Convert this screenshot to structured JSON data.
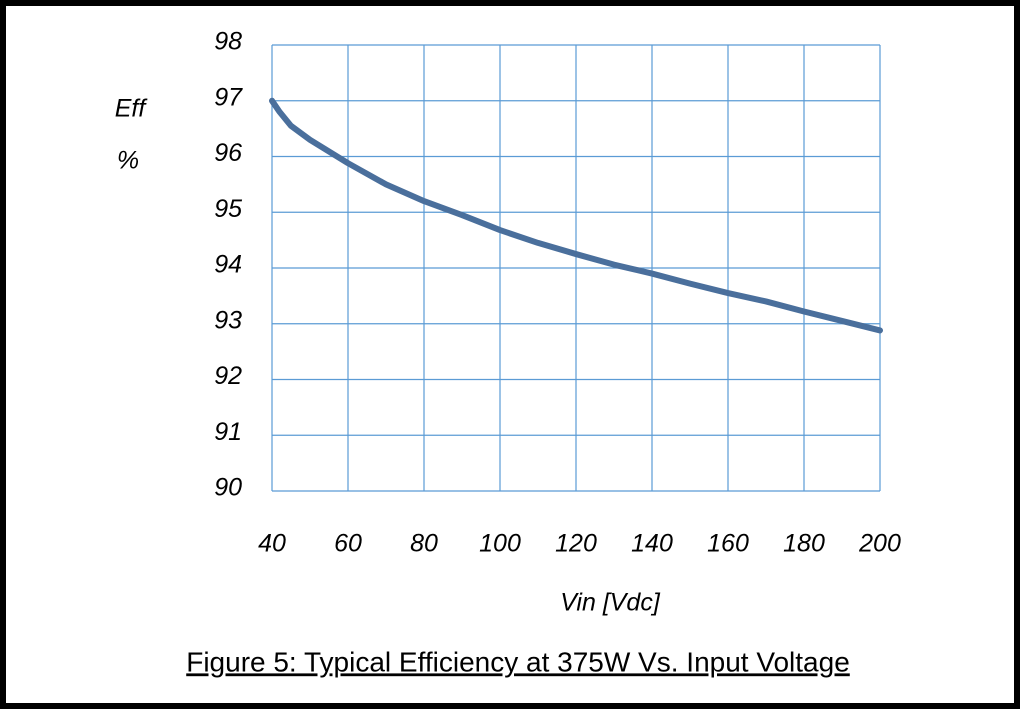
{
  "chart_data": {
    "type": "line",
    "caption": "Figure 5: Typical Efficiency at 375W Vs. Input Voltage",
    "ylabel": "Eff",
    "ylabel_unit": "%",
    "xlabel": "Vin [Vdc]",
    "x": [
      40,
      42,
      45,
      50,
      60,
      70,
      80,
      90,
      100,
      110,
      120,
      130,
      140,
      150,
      160,
      170,
      180,
      190,
      200
    ],
    "series": [
      {
        "name": "Efficiency",
        "color": "#4a6f9c",
        "values": [
          97.0,
          96.8,
          96.55,
          96.3,
          95.88,
          95.5,
          95.2,
          94.95,
          94.68,
          94.45,
          94.25,
          94.06,
          93.9,
          93.72,
          93.55,
          93.4,
          93.22,
          93.05,
          92.88
        ]
      }
    ],
    "xlim": [
      40,
      200
    ],
    "ylim": [
      90,
      98
    ],
    "xticks": [
      40,
      60,
      80,
      100,
      120,
      140,
      160,
      180,
      200
    ],
    "yticks": [
      90,
      91,
      92,
      93,
      94,
      95,
      96,
      97,
      98
    ],
    "grid": true,
    "grid_color": "#5b9bd5"
  }
}
